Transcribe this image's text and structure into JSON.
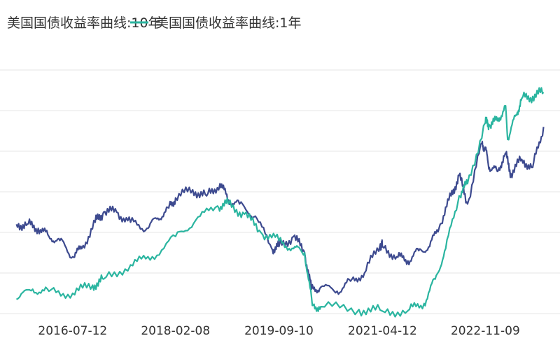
{
  "chart_data": {
    "type": "line",
    "title": "",
    "xlabel": "",
    "ylabel": "",
    "x_tick_labels": [
      "2016-07-12",
      "2018-02-08",
      "2019-09-10",
      "2021-04-12",
      "2022-11-09"
    ],
    "ylim": [
      0,
      6
    ],
    "grid": true,
    "legend_position": "top",
    "series": [
      {
        "name": "美国国债收益率曲线:10年",
        "color": "#3d4a8f",
        "points": [
          [
            "2015-09-01",
            2.2
          ],
          [
            "2015-11-01",
            2.2
          ],
          [
            "2016-01-01",
            2.1
          ],
          [
            "2016-03-01",
            1.9
          ],
          [
            "2016-05-01",
            1.8
          ],
          [
            "2016-07-12",
            1.4
          ],
          [
            "2016-09-01",
            1.6
          ],
          [
            "2016-11-15",
            2.25
          ],
          [
            "2017-01-01",
            2.5
          ],
          [
            "2017-03-15",
            2.5
          ],
          [
            "2017-06-01",
            2.25
          ],
          [
            "2017-09-01",
            2.1
          ],
          [
            "2017-11-01",
            2.35
          ],
          [
            "2018-01-01",
            2.6
          ],
          [
            "2018-02-08",
            2.85
          ],
          [
            "2018-05-15",
            3.05
          ],
          [
            "2018-08-01",
            2.9
          ],
          [
            "2018-10-15",
            3.2
          ],
          [
            "2018-12-01",
            2.8
          ],
          [
            "2019-02-01",
            2.7
          ],
          [
            "2019-05-01",
            2.4
          ],
          [
            "2019-08-01",
            1.6
          ],
          [
            "2019-09-10",
            1.65
          ],
          [
            "2019-12-01",
            1.9
          ],
          [
            "2020-02-01",
            1.5
          ],
          [
            "2020-03-10",
            0.6
          ],
          [
            "2020-05-01",
            0.65
          ],
          [
            "2020-08-01",
            0.55
          ],
          [
            "2020-10-15",
            0.8
          ],
          [
            "2021-01-01",
            1.0
          ],
          [
            "2021-03-31",
            1.72
          ],
          [
            "2021-04-12",
            1.65
          ],
          [
            "2021-07-01",
            1.4
          ],
          [
            "2021-09-01",
            1.3
          ],
          [
            "2021-11-01",
            1.55
          ],
          [
            "2022-01-01",
            1.65
          ],
          [
            "2022-03-01",
            2.2
          ],
          [
            "2022-05-01",
            2.9
          ],
          [
            "2022-06-15",
            3.4
          ],
          [
            "2022-08-01",
            2.7
          ],
          [
            "2022-10-21",
            4.2
          ],
          [
            "2022-11-09",
            4.05
          ],
          [
            "2022-12-01",
            3.6
          ],
          [
            "2023-01-15",
            3.5
          ],
          [
            "2023-03-01",
            3.95
          ],
          [
            "2023-04-01",
            3.45
          ],
          [
            "2023-06-01",
            3.8
          ],
          [
            "2023-08-01",
            3.6
          ],
          [
            "2023-10-01",
            4.6
          ]
        ]
      },
      {
        "name": "美国国债收益率曲线:1年",
        "color": "#2bb5a0",
        "points": [
          [
            "2015-09-01",
            0.35
          ],
          [
            "2015-12-01",
            0.6
          ],
          [
            "2016-03-01",
            0.55
          ],
          [
            "2016-07-12",
            0.5
          ],
          [
            "2016-11-01",
            0.7
          ],
          [
            "2017-01-01",
            0.85
          ],
          [
            "2017-06-01",
            1.2
          ],
          [
            "2017-10-01",
            1.4
          ],
          [
            "2018-02-08",
            1.9
          ],
          [
            "2018-06-01",
            2.3
          ],
          [
            "2018-10-01",
            2.65
          ],
          [
            "2018-12-01",
            2.7
          ],
          [
            "2019-03-01",
            2.45
          ],
          [
            "2019-06-01",
            2.0
          ],
          [
            "2019-09-10",
            1.8
          ],
          [
            "2019-12-01",
            1.6
          ],
          [
            "2020-02-01",
            1.5
          ],
          [
            "2020-03-15",
            0.2
          ],
          [
            "2020-05-01",
            0.17
          ],
          [
            "2020-12-01",
            0.1
          ],
          [
            "2021-04-12",
            0.06
          ],
          [
            "2021-09-01",
            0.07
          ],
          [
            "2021-12-01",
            0.25
          ],
          [
            "2022-02-01",
            0.85
          ],
          [
            "2022-04-01",
            1.6
          ],
          [
            "2022-06-15",
            2.9
          ],
          [
            "2022-08-01",
            3.2
          ],
          [
            "2022-11-09",
            4.7
          ],
          [
            "2022-12-01",
            4.65
          ],
          [
            "2023-01-15",
            4.75
          ],
          [
            "2023-03-01",
            5.1
          ],
          [
            "2023-03-15",
            4.3
          ],
          [
            "2023-05-01",
            4.9
          ],
          [
            "2023-06-01",
            5.3
          ],
          [
            "2023-08-01",
            5.35
          ],
          [
            "2023-10-01",
            5.45
          ]
        ]
      }
    ]
  }
}
